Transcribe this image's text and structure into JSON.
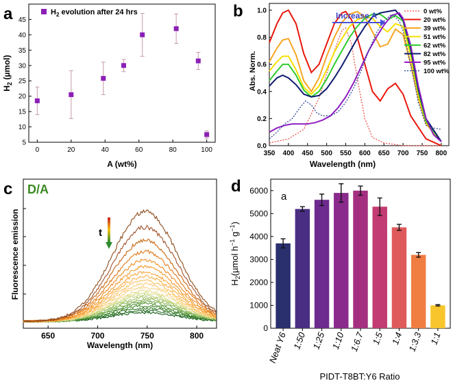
{
  "panel_labels": {
    "a": "a",
    "b": "b",
    "c": "c",
    "d": "d"
  },
  "chart_data": [
    {
      "panel": "a",
      "type": "scatter",
      "title": "",
      "legend": "H2 evolution after 24 hrs",
      "legend_main": "H",
      "legend_sub": "2",
      "legend_rest": " evolution after 24 hrs",
      "xlabel": "A (wt%)",
      "ylabel": "H2 (µmol)",
      "ylabel_main": "H",
      "ylabel_sub": "2",
      "ylabel_rest": " (µmol)",
      "xlim": [
        -5,
        105
      ],
      "ylim": [
        5,
        50
      ],
      "xticks": [
        0,
        20,
        40,
        60,
        80,
        100
      ],
      "yticks": [
        5,
        10,
        15,
        20,
        25,
        30,
        35,
        40,
        45
      ],
      "x": [
        0,
        20,
        39,
        51,
        62,
        82,
        95,
        100
      ],
      "y": [
        18.5,
        20.5,
        25.8,
        30.0,
        40.0,
        42.0,
        31.5,
        7.5
      ],
      "err": [
        4.5,
        7.8,
        5.3,
        2.0,
        7.0,
        4.8,
        2.8,
        1.2
      ],
      "color": "#8b1fb6",
      "errcolor": "#c49aa6"
    },
    {
      "panel": "b",
      "type": "line",
      "xlabel": "Wavelength (nm)",
      "ylabel": "Abs. Norm.",
      "xlim": [
        350,
        820
      ],
      "ylim": [
        0.0,
        1.05
      ],
      "xticks": [
        350,
        400,
        450,
        500,
        550,
        600,
        650,
        700,
        750,
        800
      ],
      "yticks": [
        0.0,
        0.2,
        0.4,
        0.6,
        0.8,
        1.0
      ],
      "annotation": "Increase A",
      "series": [
        {
          "name": "0 wt%",
          "color": "#e8453c",
          "style": "dotted",
          "x": [
            350,
            400,
            440,
            480,
            510,
            540,
            550,
            565,
            580,
            600,
            620,
            650,
            700,
            800
          ],
          "y": [
            0.02,
            0.05,
            0.12,
            0.35,
            0.62,
            0.85,
            0.87,
            0.75,
            0.5,
            0.2,
            0.06,
            0.02,
            0.0,
            0.0
          ]
        },
        {
          "name": "20 wt%",
          "color": "#e8170c",
          "style": "solid",
          "x": [
            350,
            370,
            385,
            400,
            420,
            440,
            460,
            480,
            500,
            520,
            540,
            550,
            565,
            580,
            600,
            620,
            640,
            660,
            680,
            700,
            720,
            760,
            800
          ],
          "y": [
            0.76,
            0.9,
            0.98,
            1.0,
            0.9,
            0.68,
            0.54,
            0.6,
            0.75,
            0.9,
            0.98,
            0.99,
            0.93,
            0.8,
            0.6,
            0.4,
            0.33,
            0.42,
            0.46,
            0.38,
            0.22,
            0.05,
            0.0
          ]
        },
        {
          "name": "39 wt%",
          "color": "#f5a623",
          "style": "solid",
          "x": [
            350,
            370,
            385,
            400,
            420,
            440,
            460,
            480,
            500,
            520,
            540,
            560,
            580,
            600,
            620,
            640,
            660,
            680,
            700,
            720,
            740,
            760,
            800
          ],
          "y": [
            0.62,
            0.72,
            0.78,
            0.79,
            0.67,
            0.48,
            0.4,
            0.5,
            0.66,
            0.8,
            0.91,
            0.97,
            0.99,
            0.95,
            0.84,
            0.73,
            0.75,
            0.86,
            0.82,
            0.6,
            0.35,
            0.16,
            0.03
          ]
        },
        {
          "name": "51 wt%",
          "color": "#f5e000",
          "style": "solid",
          "x": [
            350,
            370,
            385,
            400,
            420,
            440,
            460,
            480,
            500,
            520,
            540,
            560,
            580,
            600,
            620,
            640,
            660,
            680,
            700,
            720,
            740,
            760,
            800
          ],
          "y": [
            0.55,
            0.62,
            0.66,
            0.66,
            0.56,
            0.43,
            0.38,
            0.44,
            0.56,
            0.69,
            0.79,
            0.88,
            0.93,
            0.95,
            0.94,
            0.88,
            0.84,
            0.9,
            0.88,
            0.66,
            0.38,
            0.17,
            0.03
          ]
        },
        {
          "name": "62 wt%",
          "color": "#2ecc2e",
          "style": "solid",
          "x": [
            350,
            370,
            385,
            400,
            420,
            440,
            460,
            480,
            500,
            520,
            540,
            560,
            580,
            600,
            620,
            640,
            660,
            680,
            700,
            720,
            740,
            760,
            800
          ],
          "y": [
            0.48,
            0.55,
            0.6,
            0.6,
            0.52,
            0.41,
            0.36,
            0.4,
            0.49,
            0.6,
            0.7,
            0.8,
            0.88,
            0.94,
            0.97,
            0.97,
            0.93,
            0.96,
            0.92,
            0.7,
            0.4,
            0.18,
            0.03
          ]
        },
        {
          "name": "82 wt%",
          "color": "#0d1a6e",
          "style": "solid",
          "x": [
            350,
            370,
            385,
            400,
            420,
            440,
            460,
            480,
            500,
            520,
            540,
            560,
            580,
            600,
            620,
            640,
            660,
            680,
            700,
            720,
            740,
            760,
            800
          ],
          "y": [
            0.44,
            0.5,
            0.52,
            0.5,
            0.45,
            0.38,
            0.36,
            0.37,
            0.42,
            0.5,
            0.59,
            0.69,
            0.79,
            0.88,
            0.95,
            0.98,
            0.99,
            1.0,
            0.93,
            0.72,
            0.42,
            0.2,
            0.03
          ]
        },
        {
          "name": "95 wt%",
          "color": "#8e1cc0",
          "style": "solid",
          "x": [
            350,
            370,
            390,
            410,
            430,
            450,
            470,
            490,
            510,
            530,
            550,
            570,
            590,
            610,
            630,
            650,
            670,
            690,
            700,
            720,
            740,
            760,
            780,
            800
          ],
          "y": [
            0.1,
            0.13,
            0.15,
            0.16,
            0.16,
            0.16,
            0.17,
            0.19,
            0.22,
            0.28,
            0.36,
            0.46,
            0.58,
            0.7,
            0.8,
            0.89,
            0.96,
            0.98,
            0.94,
            0.74,
            0.44,
            0.2,
            0.08,
            0.03
          ]
        },
        {
          "name": "100 wt%",
          "color": "#1f3a93",
          "style": "dotted",
          "x": [
            350,
            370,
            390,
            410,
            430,
            445,
            460,
            475,
            490,
            510,
            530,
            550,
            570,
            590,
            610,
            630,
            650,
            670,
            690,
            700,
            720,
            740,
            760,
            780,
            800
          ],
          "y": [
            0.05,
            0.1,
            0.16,
            0.2,
            0.28,
            0.33,
            0.3,
            0.24,
            0.22,
            0.22,
            0.25,
            0.32,
            0.42,
            0.55,
            0.7,
            0.83,
            0.92,
            0.97,
            0.92,
            0.85,
            0.6,
            0.32,
            0.15,
            0.13,
            0.12
          ]
        }
      ]
    },
    {
      "panel": "c",
      "type": "line",
      "title": "D/A",
      "xlabel": "Wavelength (nm)",
      "ylabel": "Fluorescence emission",
      "time_label": "t",
      "xlim": [
        625,
        820
      ],
      "xticks": [
        650,
        700,
        750,
        800
      ],
      "peak_nm": 748,
      "peak_intensities": [
        1.0,
        0.86,
        0.74,
        0.64,
        0.56,
        0.5,
        0.45,
        0.41,
        0.37,
        0.34,
        0.31,
        0.28,
        0.26,
        0.24,
        0.22,
        0.2,
        0.18,
        0.16,
        0.14,
        0.12,
        0.1,
        0.08
      ],
      "trace_colors": [
        "#8b4a1a",
        "#a0522d",
        "#c8640f",
        "#e07818",
        "#ee8a1f",
        "#f39a2c",
        "#f7a63a",
        "#f9b24c",
        "#fabf5f",
        "#fbcb75",
        "#f7d68c",
        "#e8dc8f",
        "#d5dc85",
        "#bfd27a",
        "#a6c56c",
        "#8db85e",
        "#74a94f",
        "#5c9a40",
        "#468b33",
        "#337a28",
        "#226a1f",
        "#155c18"
      ]
    },
    {
      "panel": "d",
      "type": "bar",
      "annotation": "a",
      "xlabel": "PIDT-T8BT:Y6 Ratio",
      "ylabel": "H2(µmol h−1 g−1)",
      "ylabel_parts": {
        "h": "H",
        "sub": "2",
        "open": "(µmol h",
        "sup1": "−1",
        "g": " g",
        "sup2": "−1",
        "close": ")"
      },
      "ylim": [
        0,
        6500
      ],
      "yticks": [
        0,
        1000,
        2000,
        3000,
        4000,
        5000,
        6000
      ],
      "categories": [
        "Neat Y6",
        "1:50",
        "1:25",
        "1:10",
        "1:6.7",
        "1:5",
        "1:4",
        "1:3.3",
        "1:1"
      ],
      "values": [
        3700,
        5200,
        5600,
        5900,
        6000,
        5300,
        4400,
        3200,
        1000
      ],
      "errors": [
        200,
        100,
        250,
        400,
        200,
        380,
        130,
        100,
        30
      ],
      "colors": [
        "#2a2f6e",
        "#4a2e83",
        "#6d2a8f",
        "#8a2a8c",
        "#a42f80",
        "#c23b72",
        "#df5a5b",
        "#f07d42",
        "#f8c62c"
      ]
    }
  ]
}
